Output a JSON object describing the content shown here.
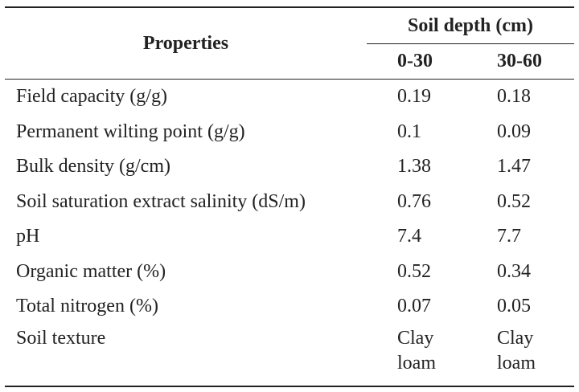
{
  "table": {
    "header": {
      "properties_label": "Properties",
      "group_label": "Soil depth (cm)",
      "depth_1": "0-30",
      "depth_2": "30-60"
    },
    "rows": [
      {
        "property": "Field capacity (g/g)",
        "d1": "0.19",
        "d2": "0.18"
      },
      {
        "property": "Permanent wilting point (g/g)",
        "d1": "0.1",
        "d2": "0.09"
      },
      {
        "property": "Bulk density (g/cm)",
        "d1": "1.38",
        "d2": "1.47"
      },
      {
        "property": "Soil saturation extract salinity (dS/m)",
        "d1": "0.76",
        "d2": "0.52"
      },
      {
        "property": "pH",
        "d1": "7.4",
        "d2": "7.7"
      },
      {
        "property": "Organic matter (%)",
        "d1": "0.52",
        "d2": "0.34"
      },
      {
        "property": "Total nitrogen (%)",
        "d1": "0.07",
        "d2": "0.05"
      }
    ],
    "texture_row": {
      "property": "Soil texture",
      "d1_line1": "Clay",
      "d1_line2": "loam",
      "d2_line1": "Clay",
      "d2_line2": "loam"
    }
  }
}
